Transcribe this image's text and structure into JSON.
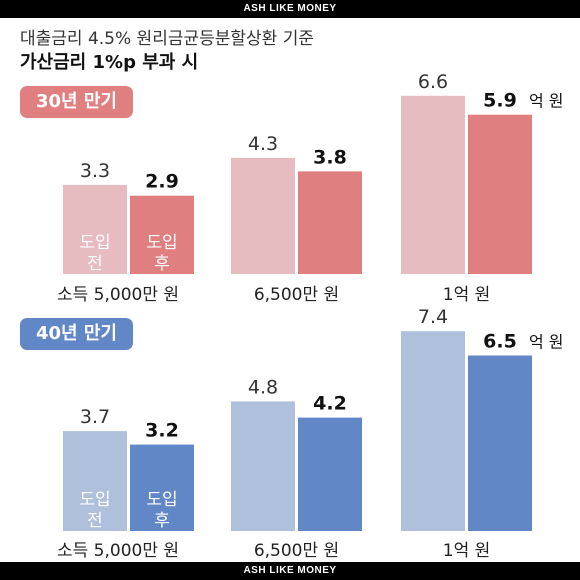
{
  "banner_top": "ASH LIKE MONEY",
  "banner_bottom": "ASH LIKE MONEY",
  "header": {
    "line1": "대출금리 4.5% 원리금균등분할상환 기준",
    "line2": "가산금리 1%p 부과 시"
  },
  "chart_data": [
    {
      "type": "bar",
      "title": "30년 만기",
      "categories": [
        "소득 5,000만 원",
        "6,500만 원",
        "1억 원"
      ],
      "series": [
        {
          "name": "도입 전",
          "values": [
            3.3,
            4.3,
            6.6
          ],
          "color": "#e6bcc0"
        },
        {
          "name": "도입 후",
          "values": [
            2.9,
            3.8,
            5.9
          ],
          "color": "#e07f80"
        }
      ],
      "unit_suffix": "억 원",
      "ylim": [
        0,
        7.4
      ]
    },
    {
      "type": "bar",
      "title": "40년 만기",
      "categories": [
        "소득 5,000만 원",
        "6,500만 원",
        "1억 원"
      ],
      "series": [
        {
          "name": "도입 전",
          "values": [
            3.7,
            4.8,
            7.4
          ],
          "color": "#afc0dd"
        },
        {
          "name": "도입 후",
          "values": [
            3.2,
            4.2,
            6.5
          ],
          "color": "#6287c6"
        }
      ],
      "unit_suffix": "억 원",
      "ylim": [
        0,
        7.4
      ]
    }
  ]
}
